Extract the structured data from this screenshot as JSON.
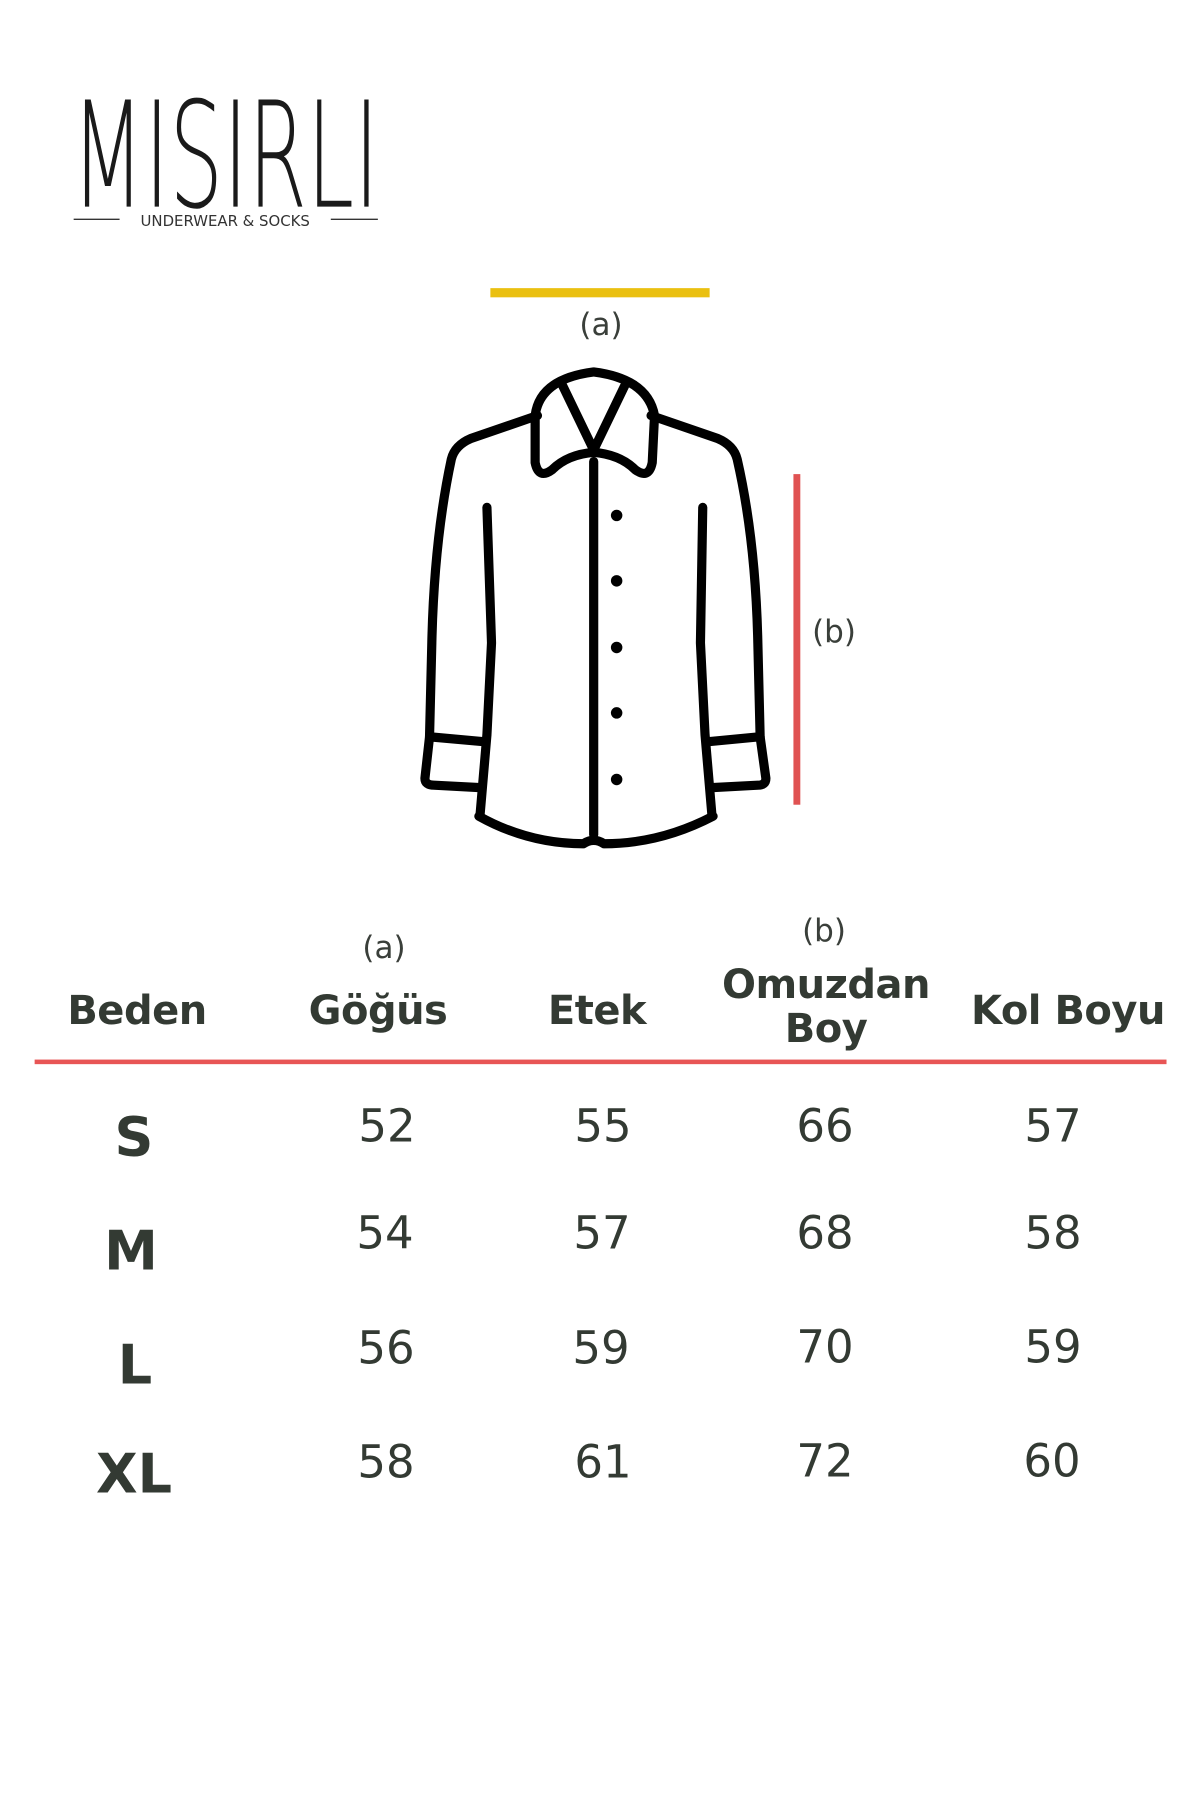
{
  "logo": {
    "name": "MISIRLI",
    "tagline": "UNDERWEAR & SOCKS"
  },
  "diagram": {
    "label_a": "(a)",
    "label_b": "(b)",
    "icon": "shirt-icon",
    "colors": {
      "a_marker": "#eac010",
      "b_marker": "#e05252",
      "outline": "#000000"
    }
  },
  "table": {
    "rule_color": "#e85555",
    "headers": [
      {
        "note": "",
        "label": "Beden"
      },
      {
        "note": "(a)",
        "label": "Göğüs"
      },
      {
        "note": "",
        "label": "Etek"
      },
      {
        "note": "(b)",
        "label": "Omuzdan Boy"
      },
      {
        "note": "",
        "label": "Kol Boyu"
      }
    ],
    "rows": [
      {
        "size": "S",
        "values": [
          "52",
          "55",
          "66",
          "57"
        ]
      },
      {
        "size": "M",
        "values": [
          "54",
          "57",
          "68",
          "58"
        ]
      },
      {
        "size": "L",
        "values": [
          "56",
          "59",
          "70",
          "59"
        ]
      },
      {
        "size": "XL",
        "values": [
          "58",
          "61",
          "72",
          "60"
        ]
      }
    ]
  }
}
